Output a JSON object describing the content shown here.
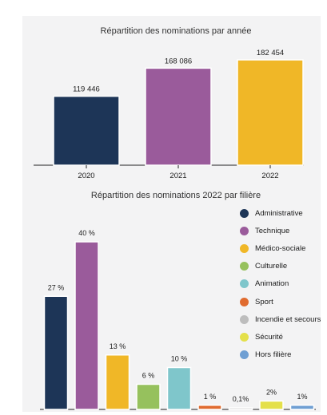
{
  "chart_data": [
    {
      "type": "bar",
      "title": "Répartition des nominations par année",
      "categories": [
        "2020",
        "2021",
        "2022"
      ],
      "values": [
        119446,
        168086,
        182454
      ],
      "value_labels": [
        "119 446",
        "168 086",
        "182 454"
      ],
      "colors": [
        "#1d3557",
        "#9a5b9b",
        "#f0b727"
      ],
      "ylim": [
        0,
        182454
      ],
      "grid": false
    },
    {
      "type": "bar",
      "title": "Répartition des nominations 2022 par filière",
      "categories": [
        "Administrative",
        "Technique",
        "Médico-sociale",
        "Culturelle",
        "Animation",
        "Sport",
        "Incendie et secours",
        "Sécurité",
        "Hors filière"
      ],
      "values": [
        27,
        40,
        13,
        6,
        10,
        1,
        0.1,
        2,
        1
      ],
      "value_labels": [
        "27 %",
        "40 %",
        "13 %",
        "6 %",
        "10 %",
        "1 %",
        "0,1%",
        "2%",
        "1%"
      ],
      "colors": [
        "#1d3557",
        "#9a5b9b",
        "#f0b727",
        "#96c15d",
        "#7fc6cb",
        "#e06b2f",
        "#bdbdbd",
        "#e4e04a",
        "#6f9fd3"
      ],
      "ylim": [
        0,
        40
      ],
      "grid": false,
      "legend": "right"
    }
  ]
}
